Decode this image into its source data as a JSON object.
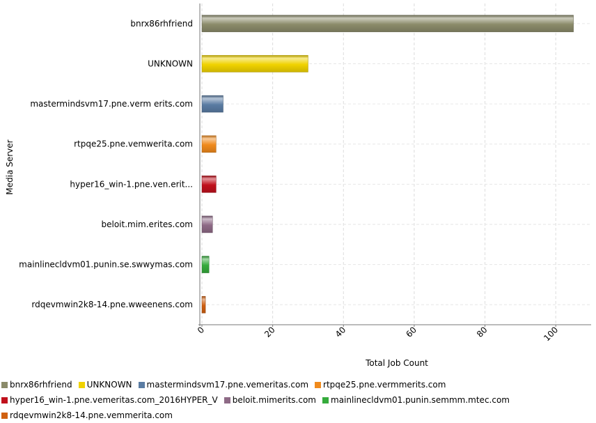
{
  "chart_data": {
    "type": "bar",
    "orientation": "horizontal",
    "ylabel": "Media Server",
    "xlabel": "Total Job Count",
    "xlim": [
      0,
      110
    ],
    "x_ticks": [
      0,
      20,
      40,
      60,
      80,
      100
    ],
    "grid": true,
    "legend_position": "bottom",
    "categories": [
      "bnrx86rhfriend",
      "UNKNOWN",
      "mastermindsvm17.pne.verm erits.com",
      "rtpqe25.pne.vemwerita.com",
      "hyper16_win-1.pne.ven.erit...",
      "beloit.mim.erites.com",
      "mainlinecldvm01.punin.se.swwymas.com",
      "rdqevmwin2k8-14.pne.wweenens.com"
    ],
    "values": [
      105,
      30,
      6,
      4,
      4,
      3,
      2,
      1
    ],
    "colors": [
      "#8b8b6a",
      "#f0d200",
      "#5a7ca3",
      "#f08a1c",
      "#c0101c",
      "#8e6a86",
      "#35ab3c",
      "#d06010"
    ],
    "legend": [
      "bnrx86rhfriend",
      "UNKNOWN",
      "mastermindsvm17.pne.vemeritas.com",
      "rtpqe25.pne.vermmerits.com",
      "hyper16_win-1.pne.vemeritas.com_2016HYPER_V",
      "beloit.mimerits.com",
      "mainlinecldvm01.punin.semmm.mtec.com",
      "rdqevmwin2k8-14.pne.vemmerita.com"
    ]
  }
}
